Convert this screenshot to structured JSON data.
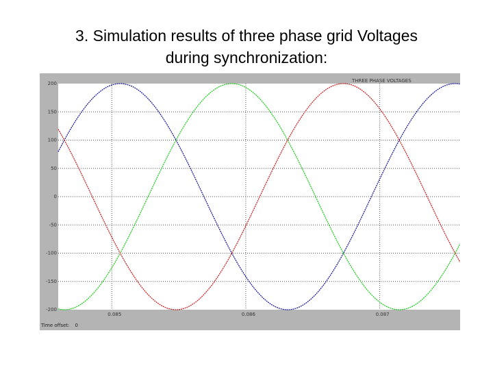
{
  "slide": {
    "title_line1": "3. Simulation results of three phase grid Voltages",
    "title_line2": "during synchronization:"
  },
  "scope": {
    "footer_label": "Time offset:",
    "footer_value": "0"
  },
  "chart_data": {
    "type": "line",
    "title": "THREE PHASE VOLTAGES",
    "ylim": [
      -200,
      200
    ],
    "y_ticks": [
      200,
      150,
      100,
      50,
      0,
      -50,
      -100,
      -150,
      -200
    ],
    "xlim": [
      0.0846,
      0.0876
    ],
    "x_tick_labels": [
      {
        "x": 0.085,
        "label": "0.085"
      },
      {
        "x": 0.086,
        "label": "0.086"
      },
      {
        "x": 0.087,
        "label": "0.087"
      }
    ],
    "grid": "dotted",
    "series": [
      {
        "color": "#1a1a9a",
        "amplitude": 200,
        "frequency_hz": 400,
        "phase_deg": 81
      },
      {
        "color": "#22cc22",
        "amplitude": 200,
        "frequency_hz": 400,
        "phase_deg": -39
      },
      {
        "color": "#cc2222",
        "amplitude": 200,
        "frequency_hz": 400,
        "phase_deg": 201
      }
    ]
  }
}
